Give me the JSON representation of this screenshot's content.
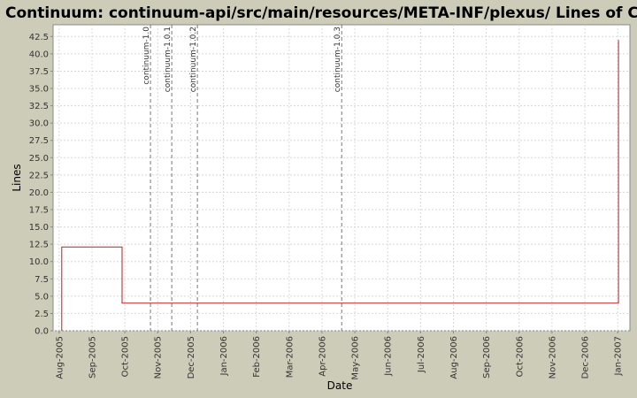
{
  "chart_data": {
    "type": "line",
    "title": "Continuum: continuum-api/src/main/resources/META-INF/plexus/ Lines of Code",
    "x_label": "Date",
    "y_label": "Lines",
    "color": "#b22222",
    "x": [
      2005.59,
      2005.59,
      2005.743,
      2005.743,
      2007.002,
      2007.002
    ],
    "values": [
      0,
      12.1,
      12.1,
      4,
      4,
      42
    ],
    "xlim": [
      2005.568,
      2007.031
    ],
    "ylim": [
      0,
      44.2
    ],
    "grid": true,
    "xticks": [
      {
        "value": 2005.5833,
        "label": "Aug-2005"
      },
      {
        "value": 2005.6667,
        "label": "Sep-2005"
      },
      {
        "value": 2005.75,
        "label": "Oct-2005"
      },
      {
        "value": 2005.8333,
        "label": "Nov-2005"
      },
      {
        "value": 2005.9167,
        "label": "Dec-2005"
      },
      {
        "value": 2006.0,
        "label": "Jan-2006"
      },
      {
        "value": 2006.0833,
        "label": "Feb-2006"
      },
      {
        "value": 2006.1667,
        "label": "Mar-2006"
      },
      {
        "value": 2006.25,
        "label": "Apr-2006"
      },
      {
        "value": 2006.3333,
        "label": "May-2006"
      },
      {
        "value": 2006.4167,
        "label": "Jun-2006"
      },
      {
        "value": 2006.5,
        "label": "Jul-2006"
      },
      {
        "value": 2006.5833,
        "label": "Aug-2006"
      },
      {
        "value": 2006.6667,
        "label": "Sep-2006"
      },
      {
        "value": 2006.75,
        "label": "Oct-2006"
      },
      {
        "value": 2006.8333,
        "label": "Nov-2006"
      },
      {
        "value": 2006.9167,
        "label": "Dec-2006"
      },
      {
        "value": 2007.0,
        "label": "Jan-2007"
      }
    ],
    "yticks": [
      {
        "value": 0,
        "label": "0.0"
      },
      2.5,
      {
        "value": 5,
        "label": "5.0"
      },
      7.5,
      {
        "value": 10,
        "label": "10.0"
      },
      12.5,
      {
        "value": 15,
        "label": "15.0"
      },
      17.5,
      {
        "value": 20,
        "label": "20.0"
      },
      22.5,
      {
        "value": 25,
        "label": "25.0"
      },
      27.5,
      {
        "value": 30,
        "label": "30.0"
      },
      32.5,
      {
        "value": 35,
        "label": "35.0"
      },
      37.5,
      {
        "value": 40,
        "label": "40.0"
      },
      42.5
    ],
    "markers": [
      {
        "label": "continuum-1.0",
        "x": 2005.815
      },
      {
        "label": "continuum-1.0.1",
        "x": 2005.869
      },
      {
        "label": "continuum-1.0.2",
        "x": 2005.934
      },
      {
        "label": "continuum-1.0.3",
        "x": 2006.3
      }
    ]
  }
}
